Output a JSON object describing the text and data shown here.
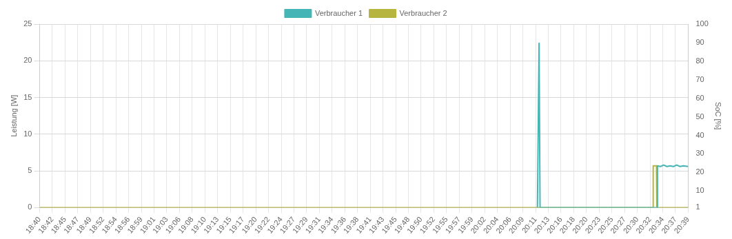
{
  "chart_data": {
    "type": "line",
    "ylabel": "Leistung [W]",
    "y2label": "SoC [%]",
    "xlim": [
      18.6667,
      20.65
    ],
    "xticks": [
      {
        "value": 18.6667,
        "label": "18:40"
      },
      {
        "value": 18.7056,
        "label": "18:42"
      },
      {
        "value": 18.7444,
        "label": "18:45"
      },
      {
        "value": 18.7833,
        "label": "18:47"
      },
      {
        "value": 18.8222,
        "label": "18:49"
      },
      {
        "value": 18.8611,
        "label": "18:52"
      },
      {
        "value": 18.9,
        "label": "18:54"
      },
      {
        "value": 18.9389,
        "label": "18:56"
      },
      {
        "value": 18.9778,
        "label": "18:59"
      },
      {
        "value": 19.0167,
        "label": "19:01"
      },
      {
        "value": 19.0556,
        "label": "19:03"
      },
      {
        "value": 19.0944,
        "label": "19:06"
      },
      {
        "value": 19.1333,
        "label": "19:08"
      },
      {
        "value": 19.1722,
        "label": "19:10"
      },
      {
        "value": 19.2111,
        "label": "19:13"
      },
      {
        "value": 19.25,
        "label": "19:15"
      },
      {
        "value": 19.2889,
        "label": "19:17"
      },
      {
        "value": 19.3278,
        "label": "19:20"
      },
      {
        "value": 19.3667,
        "label": "19:22"
      },
      {
        "value": 19.4056,
        "label": "19:24"
      },
      {
        "value": 19.4444,
        "label": "19:27"
      },
      {
        "value": 19.4833,
        "label": "19:29"
      },
      {
        "value": 19.5222,
        "label": "19:31"
      },
      {
        "value": 19.5611,
        "label": "19:34"
      },
      {
        "value": 19.6,
        "label": "19:36"
      },
      {
        "value": 19.6389,
        "label": "19:38"
      },
      {
        "value": 19.6778,
        "label": "19:41"
      },
      {
        "value": 19.7167,
        "label": "19:43"
      },
      {
        "value": 19.7556,
        "label": "19:45"
      },
      {
        "value": 19.7944,
        "label": "19:48"
      },
      {
        "value": 19.8333,
        "label": "19:50"
      },
      {
        "value": 19.8722,
        "label": "19:52"
      },
      {
        "value": 19.9111,
        "label": "19:55"
      },
      {
        "value": 19.95,
        "label": "19:57"
      },
      {
        "value": 19.9889,
        "label": "19:59"
      },
      {
        "value": 20.0278,
        "label": "20:02"
      },
      {
        "value": 20.0667,
        "label": "20:04"
      },
      {
        "value": 20.1056,
        "label": "20:06"
      },
      {
        "value": 20.1444,
        "label": "20:09"
      },
      {
        "value": 20.1833,
        "label": "20:11"
      },
      {
        "value": 20.2222,
        "label": "20:13"
      },
      {
        "value": 20.2611,
        "label": "20:16"
      },
      {
        "value": 20.3,
        "label": "20:18"
      },
      {
        "value": 20.3389,
        "label": "20:20"
      },
      {
        "value": 20.3778,
        "label": "20:23"
      },
      {
        "value": 20.4167,
        "label": "20:25"
      },
      {
        "value": 20.4556,
        "label": "20:27"
      },
      {
        "value": 20.4944,
        "label": "20:30"
      },
      {
        "value": 20.5333,
        "label": "20:32"
      },
      {
        "value": 20.5722,
        "label": "20:34"
      },
      {
        "value": 20.6111,
        "label": "20:37"
      },
      {
        "value": 20.65,
        "label": "20:39"
      }
    ],
    "ylim": [
      0,
      25
    ],
    "yticks": [
      0,
      5,
      10,
      15,
      20,
      25
    ],
    "y2lim": [
      1,
      100
    ],
    "y2ticks": [
      1,
      10,
      20,
      30,
      40,
      50,
      60,
      70,
      80,
      90,
      100
    ],
    "grid": true,
    "legend": "top",
    "marker": "none",
    "line_style": "solid",
    "series": [
      {
        "name": "Verbraucher 1",
        "color": "#45b5b5",
        "x": [
          20.189,
          20.194,
          20.197,
          20.5555,
          20.556,
          20.565,
          20.575,
          20.585,
          20.595,
          20.605,
          20.615,
          20.625,
          20.635,
          20.65
        ],
        "values": [
          0,
          22.4,
          0,
          0,
          5.7,
          5.6,
          5.8,
          5.6,
          5.7,
          5.6,
          5.8,
          5.6,
          5.7,
          5.6
        ]
      },
      {
        "name": "Verbraucher 2",
        "color": "#b5b540",
        "x": [
          18.6667,
          20.542,
          20.543,
          20.553,
          20.554,
          20.65
        ],
        "values": [
          0,
          0,
          5.7,
          5.7,
          0,
          0
        ]
      }
    ]
  }
}
